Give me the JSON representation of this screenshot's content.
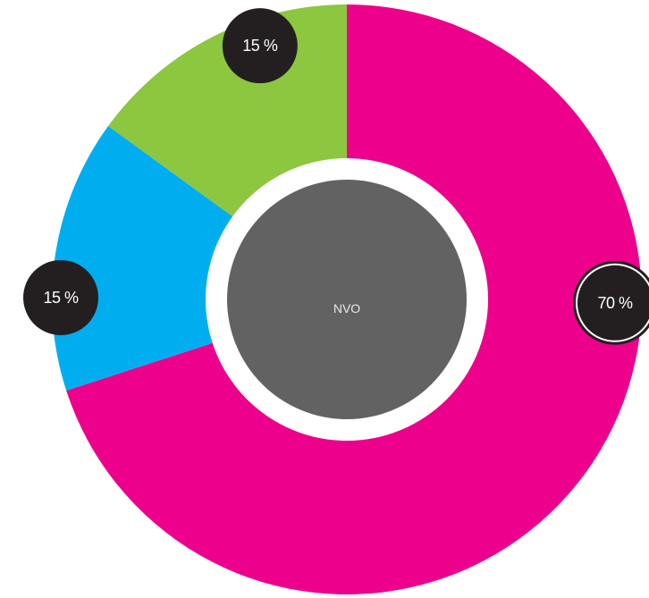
{
  "chart_data": {
    "type": "pie",
    "variant": "donut",
    "center_label": "NVO",
    "slices": [
      {
        "value": 70,
        "label": "70 %",
        "color": "#EC008C"
      },
      {
        "value": 15,
        "label": "15 %",
        "color": "#00AEEF"
      },
      {
        "value": 15,
        "label": "15 %",
        "color": "#8DC63F"
      }
    ],
    "colors": {
      "center": "#626262",
      "ring_gap": "#ffffff",
      "label_badge": "#231F20",
      "label_text": "#ffffff"
    },
    "highlighted_slice": 0
  }
}
